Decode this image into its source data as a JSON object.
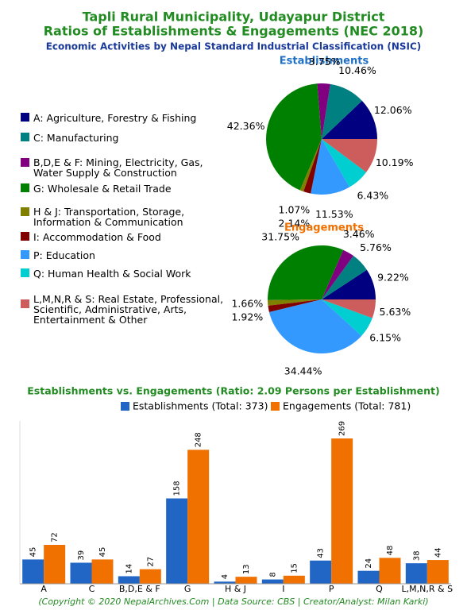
{
  "title": "Tapli Rural Municipality, Udayapur District",
  "subtitle": "Ratios of Establishments & Engagements (NEC 2018)",
  "heading": "Economic Activities by Nepal Standard Industrial Classification (NSIC)",
  "legend": {
    "labels": [
      "A: Agriculture, Forestry & Fishing",
      "C: Manufacturing",
      "B,D,E & F: Mining, Electricity, Gas, Water Supply & Construction",
      "G: Wholesale & Retail Trade",
      "H & J: Transportation, Storage, Information & Communication",
      "I: Accommodation & Food",
      "P: Education",
      "Q: Human Health & Social Work",
      "L,M,N,R & S: Real Estate, Professional, Scientific, Administrative, Arts, Entertainment & Other"
    ],
    "colors": [
      "#000080",
      "#008080",
      "#800080",
      "#008000",
      "#808000",
      "#800000",
      "#3399ff",
      "#00ced1",
      "#cd5c5c"
    ]
  },
  "chart_data": [
    {
      "type": "pie",
      "title": "Establishments",
      "title_color": "#1f6fc5",
      "values": [
        12.06,
        10.46,
        3.75,
        42.36,
        1.07,
        2.14,
        11.53,
        6.43,
        10.19
      ],
      "value_labels": [
        "12.06%",
        "10.46%",
        "3.75%",
        "42.36%",
        "1.07%",
        "2.14%",
        "11.53%",
        "6.43%",
        "10.19%"
      ]
    },
    {
      "type": "pie",
      "title": "Engagements",
      "title_color": "#f07000",
      "values": [
        9.22,
        5.76,
        3.46,
        31.75,
        1.66,
        1.92,
        34.44,
        6.15,
        5.63
      ],
      "value_labels": [
        "9.22%",
        "5.76%",
        "3.46%",
        "31.75%",
        "1.66%",
        "1.92%",
        "34.44%",
        "6.15%",
        "5.63%"
      ]
    },
    {
      "type": "bar",
      "title": "Establishments vs. Engagements (Ratio: 2.09 Persons per Establishment)",
      "categories": [
        "A",
        "C",
        "B,D,E & F",
        "G",
        "H & J",
        "I",
        "P",
        "Q",
        "L,M,N,R & S"
      ],
      "series": [
        {
          "name": "Establishments (Total: 373)",
          "color": "#2166c4",
          "values": [
            45,
            39,
            14,
            158,
            4,
            8,
            43,
            24,
            38
          ]
        },
        {
          "name": "Engagements (Total: 781)",
          "color": "#f07000",
          "values": [
            72,
            45,
            27,
            248,
            13,
            15,
            269,
            48,
            44
          ]
        }
      ]
    }
  ],
  "footer": "(Copyright © 2020 NepalArchives.Com | Data Source: CBS | Creator/Analyst: Milan Karki)"
}
